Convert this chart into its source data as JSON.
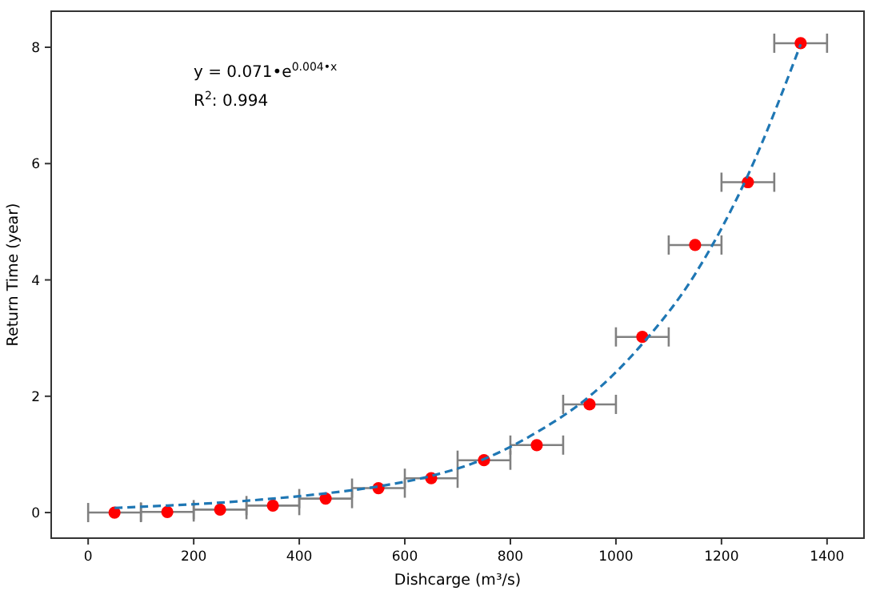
{
  "chart_data": {
    "type": "scatter",
    "xlabel": "Dishcarge (m³/s)",
    "ylabel": "Return Time (year)",
    "xlim": [
      -70,
      1470
    ],
    "ylim": [
      -0.44,
      8.62
    ],
    "xticks": [
      0,
      200,
      400,
      600,
      800,
      1000,
      1200,
      1400
    ],
    "yticks": [
      0,
      2,
      4,
      6,
      8
    ],
    "annotations": [
      "y = 0.071•e$^{0.004•x}$",
      "R$^{2}$: 0.994"
    ],
    "series": [
      {
        "color": "#ff0000",
        "marker": "circle",
        "x": [
          50,
          150,
          250,
          350,
          450,
          550,
          650,
          750,
          850,
          950,
          1050,
          1150,
          1250,
          1350
        ],
        "values": [
          0,
          0.01,
          0.05,
          0.12,
          0.24,
          0.42,
          0.59,
          0.9,
          1.16,
          1.86,
          3.02,
          4.6,
          5.68,
          8.07
        ],
        "xerrors": [
          50,
          50,
          50,
          50,
          50,
          50,
          50,
          50,
          50,
          50,
          50,
          50,
          50,
          50
        ]
      },
      {
        "type": "line",
        "color": "#1f77b4",
        "line_style": "dashed",
        "x": [
          50,
          150,
          250,
          350,
          450,
          550,
          650,
          750,
          850,
          950,
          1050,
          1150,
          1250,
          1350
        ],
        "values": [
          0.08,
          0.12,
          0.17,
          0.24,
          0.33,
          0.45,
          0.63,
          0.92,
          1.38,
          2.0,
          2.9,
          4.1,
          5.8,
          8.05
        ]
      }
    ]
  }
}
